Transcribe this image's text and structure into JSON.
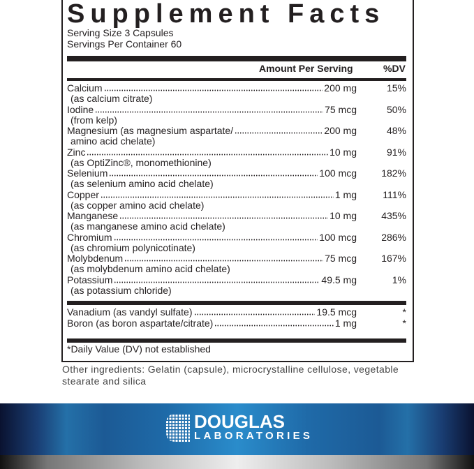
{
  "title": "Supplement Facts",
  "serving_size": "Serving Size 3 Capsules",
  "servings_per_container": "Servings Per Container 60",
  "header": {
    "amount": "Amount Per Serving",
    "dv": "%DV"
  },
  "nutrients": [
    {
      "name": "Calcium",
      "amount": "200 mg",
      "dv": "15%",
      "sub": "(as calcium citrate)"
    },
    {
      "name": "Iodine",
      "amount": "75 mcg",
      "dv": "50%",
      "sub": "(from kelp)"
    },
    {
      "name": "Magnesium (as magnesium aspartate/",
      "amount": "200 mg",
      "dv": "48%",
      "sub": "amino acid chelate)"
    },
    {
      "name": "Zinc",
      "amount": "10 mg",
      "dv": "91%",
      "sub": "(as OptiZinc®, monomethionine)"
    },
    {
      "name": "Selenium",
      "amount": "100 mcg",
      "dv": "182%",
      "sub": "(as selenium amino acid chelate)"
    },
    {
      "name": "Copper",
      "amount": "1 mg",
      "dv": "111%",
      "sub": "(as copper amino acid chelate)"
    },
    {
      "name": "Manganese",
      "amount": "10 mg",
      "dv": "435%",
      "sub": "(as manganese amino acid chelate)"
    },
    {
      "name": "Chromium",
      "amount": "100 mcg",
      "dv": "286%",
      "sub": "(as chromium polynicotinate)"
    },
    {
      "name": "Molybdenum",
      "amount": "75 mcg",
      "dv": "167%",
      "sub": "(as molybdenum amino acid chelate)"
    },
    {
      "name": "Potassium",
      "amount": "49.5 mg",
      "dv": "1%",
      "sub": "(as potassium chloride)"
    }
  ],
  "other_nutrients": [
    {
      "name": "Vanadium (as vandyl sulfate)",
      "amount": "19.5 mcg",
      "dv": "*"
    },
    {
      "name": "Boron (as boron aspartate/citrate)",
      "amount": "1 mg",
      "dv": "*"
    }
  ],
  "footnote": "*Daily Value (DV) not established",
  "other_ingredients": "Other ingredients: Gelatin (capsule), microcrystalline cellulose, vegetable stearate and silica",
  "brand": {
    "line1": "DOUGLAS",
    "line2": "LABORATORIES",
    "color": "#2a8ccb"
  }
}
